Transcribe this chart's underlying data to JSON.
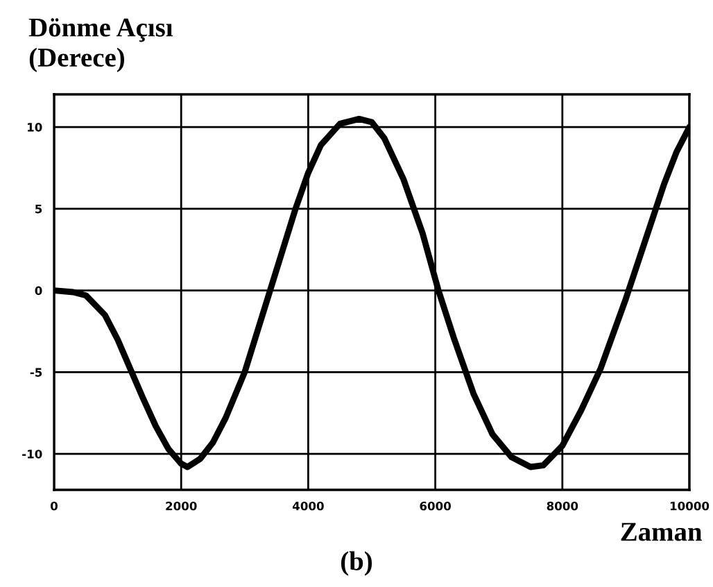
{
  "chart_data": {
    "type": "line",
    "ylabel": "Dönme Açısı\n(Derece)",
    "xlabel": "Zaman",
    "annotations": [
      "(b)"
    ],
    "x": [
      0,
      300,
      500,
      800,
      1000,
      1200,
      1400,
      1600,
      1800,
      2000,
      2100,
      2300,
      2500,
      2700,
      3000,
      3200,
      3400,
      3600,
      3800,
      4000,
      4200,
      4500,
      4800,
      5000,
      5200,
      5500,
      5800,
      6050,
      6300,
      6600,
      6900,
      7200,
      7500,
      7700,
      8000,
      8300,
      8600,
      9000,
      9300,
      9600,
      9800,
      10000
    ],
    "series": [
      {
        "color": "#000000",
        "values": [
          0,
          -0.1,
          -0.3,
          -1.5,
          -3,
          -4.8,
          -6.6,
          -8.3,
          -9.7,
          -10.6,
          -10.8,
          -10.3,
          -9.3,
          -7.8,
          -5,
          -2.5,
          0,
          2.5,
          5,
          7.2,
          8.9,
          10.2,
          10.5,
          10.3,
          9.3,
          6.8,
          3.5,
          0,
          -3,
          -6.3,
          -8.8,
          -10.2,
          -10.8,
          -10.7,
          -9.5,
          -7.3,
          -4.8,
          -0.5,
          3,
          6.5,
          8.5,
          10
        ]
      }
    ],
    "xlim": [
      0,
      10000
    ],
    "xticks": [
      0,
      2000,
      4000,
      6000,
      8000,
      10000
    ],
    "ylim": [
      -12.2,
      12
    ],
    "yticks": [
      -10,
      -5,
      0,
      5,
      10
    ],
    "grid": true,
    "marker": "none",
    "line_style": "solid"
  }
}
